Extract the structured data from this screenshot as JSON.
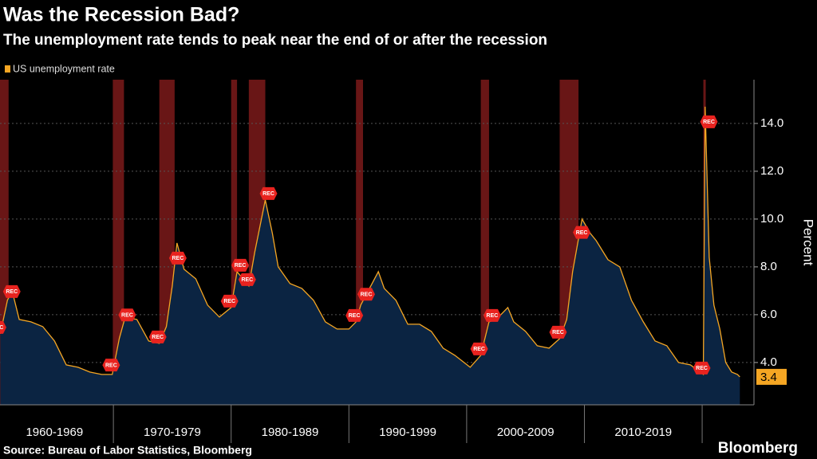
{
  "chart_data": {
    "type": "area",
    "title": "Was the Recession Bad?",
    "subtitle": "The unemployment rate tends to peak near the end of or after the recession",
    "y_label": "Percent",
    "source": "Source: Bureau of Labor Statistics, Bloomberg",
    "brand": "Bloomberg",
    "annotation": "REC",
    "categories": [
      "1960-1969",
      "1970-1979",
      "1980-1989",
      "1990-1999",
      "2000-2009",
      "2010-2019"
    ],
    "xlim": [
      1960.37,
      2024.4
    ],
    "xticks": [
      1970,
      1980,
      1990,
      2000,
      2010,
      2020
    ],
    "ylim": [
      2.23,
      15.83
    ],
    "yticks": [
      {
        "value": 4,
        "label": "4.0"
      },
      {
        "value": 6,
        "label": "6.0"
      },
      {
        "value": 8,
        "label": "8.0"
      },
      {
        "value": 10,
        "label": "10.0"
      },
      {
        "value": 12,
        "label": "12.0"
      },
      {
        "value": 14,
        "label": "14.0"
      }
    ],
    "grid": true,
    "x": [
      1960.4,
      1961.0,
      1961.4,
      1962.0,
      1963.0,
      1964.0,
      1965.0,
      1966.0,
      1967.0,
      1968.0,
      1969.0,
      1969.9,
      1970.5,
      1971.0,
      1972.0,
      1973.0,
      1973.9,
      1974.5,
      1975.0,
      1975.4,
      1976.0,
      1977.0,
      1978.0,
      1979.0,
      1980.0,
      1980.5,
      1981.0,
      1981.5,
      1982.0,
      1982.9,
      1983.5,
      1984.0,
      1985.0,
      1986.0,
      1987.0,
      1988.0,
      1989.0,
      1990.0,
      1990.6,
      1991.0,
      1992.5,
      1993.0,
      1994.0,
      1995.0,
      1996.0,
      1997.0,
      1998.0,
      1999.0,
      2000.3,
      2001.2,
      2001.9,
      2002.5,
      2003.5,
      2004.0,
      2005.0,
      2006.0,
      2007.0,
      2007.9,
      2008.5,
      2009.0,
      2009.8,
      2010.5,
      2011.0,
      2012.0,
      2013.0,
      2014.0,
      2015.0,
      2016.0,
      2017.0,
      2018.0,
      2019.0,
      2020.1,
      2020.25,
      2020.6,
      2021.0,
      2021.5,
      2022.0,
      2022.5,
      2023.0,
      2023.2
    ],
    "series": [
      {
        "name": "US unemployment rate",
        "color": "#f5a623",
        "fill": "#0b2442",
        "values": [
          5.2,
          6.6,
          7.0,
          5.8,
          5.7,
          5.5,
          4.9,
          3.9,
          3.8,
          3.6,
          3.5,
          3.5,
          5.0,
          5.9,
          5.8,
          4.9,
          4.8,
          5.5,
          7.2,
          9.0,
          7.9,
          7.5,
          6.4,
          5.9,
          6.3,
          7.8,
          7.5,
          7.2,
          8.6,
          10.8,
          9.4,
          8.0,
          7.3,
          7.1,
          6.6,
          5.7,
          5.4,
          5.4,
          5.7,
          6.4,
          7.8,
          7.1,
          6.6,
          5.6,
          5.6,
          5.3,
          4.6,
          4.3,
          3.8,
          4.3,
          5.7,
          5.8,
          6.3,
          5.7,
          5.3,
          4.7,
          4.6,
          5.0,
          5.8,
          7.8,
          10.0,
          9.4,
          9.1,
          8.3,
          8.0,
          6.6,
          5.7,
          4.9,
          4.7,
          4.0,
          3.9,
          3.5,
          14.7,
          8.4,
          6.4,
          5.4,
          4.0,
          3.6,
          3.5,
          3.4
        ]
      }
    ],
    "recessions": [
      [
        1960.3,
        1961.1
      ],
      [
        1969.95,
        1970.9
      ],
      [
        1973.9,
        1975.2
      ],
      [
        1980.0,
        1980.5
      ],
      [
        1981.5,
        1982.9
      ],
      [
        1990.6,
        1991.2
      ],
      [
        2001.2,
        2001.9
      ],
      [
        2007.9,
        2009.5
      ],
      [
        2020.1,
        2020.3
      ]
    ],
    "recession_color": "#8c1d1d"
  }
}
